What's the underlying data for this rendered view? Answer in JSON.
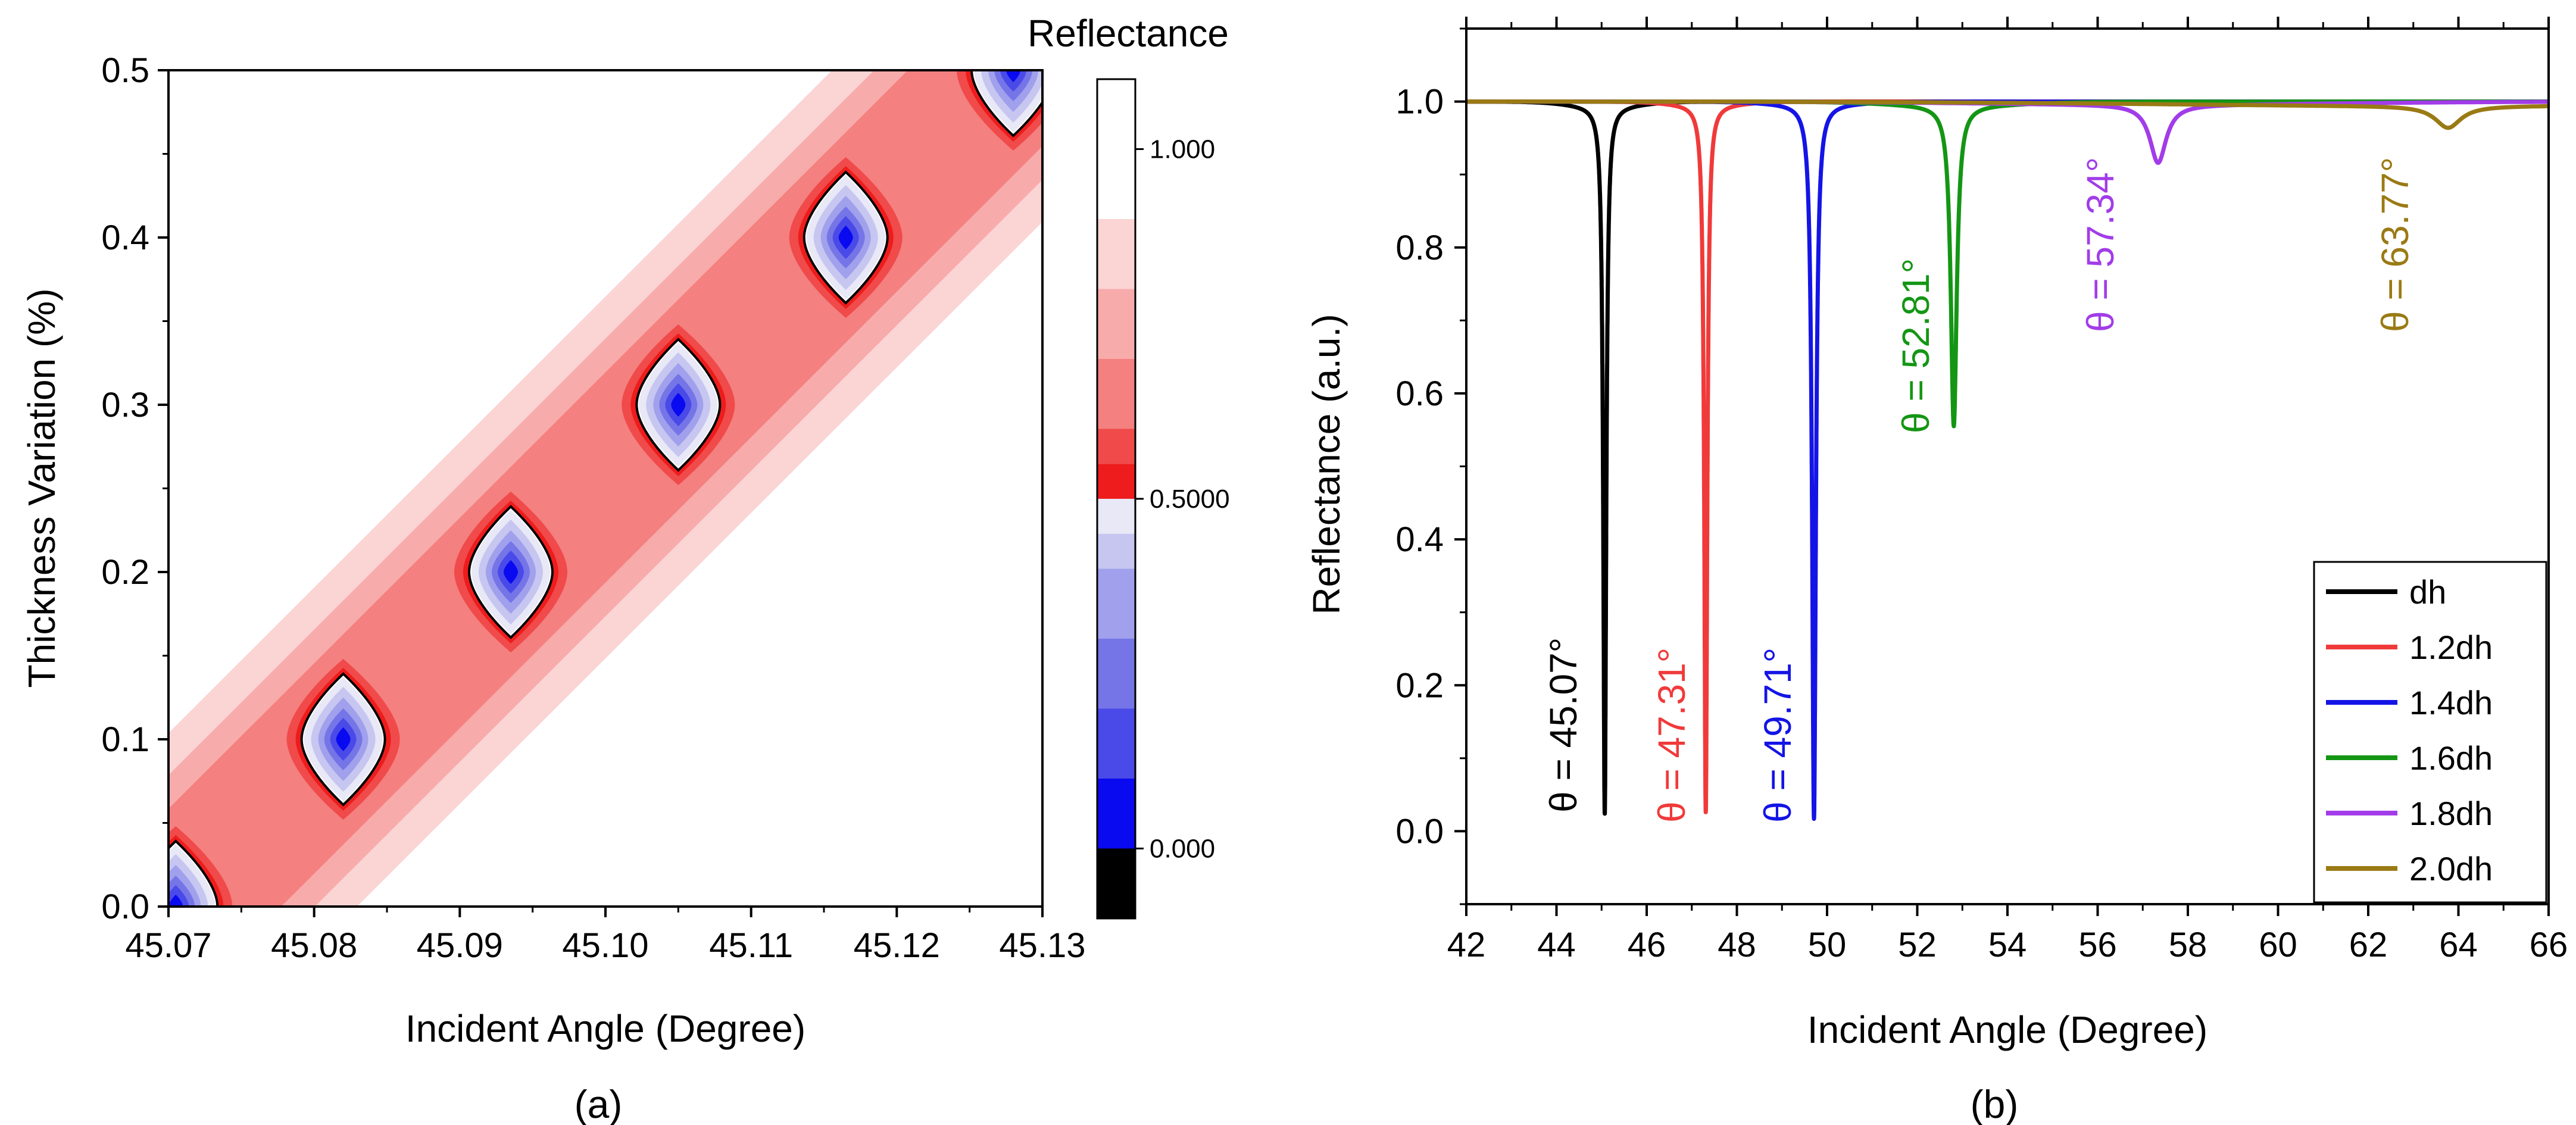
{
  "chart_data": [
    {
      "type": "heatmap",
      "panel_label": "(a)",
      "xlabel": "Incident Angle (Degree)",
      "ylabel": "Thickness Variation (%)",
      "xlim": [
        45.07,
        45.13
      ],
      "ylim": [
        0.0,
        0.5
      ],
      "xticks": [
        45.07,
        45.08,
        45.09,
        45.1,
        45.11,
        45.12,
        45.13
      ],
      "xtick_labels": [
        "45.07",
        "45.08",
        "45.09",
        "45.10",
        "45.11",
        "45.12",
        "45.13"
      ],
      "yticks": [
        0.0,
        0.1,
        0.2,
        0.3,
        0.4,
        0.5
      ],
      "ytick_labels": [
        "0.0",
        "0.1",
        "0.2",
        "0.3",
        "0.4",
        "0.5"
      ],
      "minima": [
        {
          "x": 45.0705,
          "y": 0.0
        },
        {
          "x": 45.082,
          "y": 0.1
        },
        {
          "x": 45.0935,
          "y": 0.2
        },
        {
          "x": 45.105,
          "y": 0.3
        },
        {
          "x": 45.1165,
          "y": 0.4
        },
        {
          "x": 45.128,
          "y": 0.5
        }
      ],
      "colorbar": {
        "title": "Reflectance",
        "range": [
          -0.1,
          1.1
        ],
        "tick_values": [
          1.0,
          0.5,
          0.0
        ],
        "tick_labels": [
          "1.000",
          "0.5000",
          "0.000"
        ],
        "levels": [
          {
            "from": 1.0,
            "to": 1.1,
            "color": "#ffffff"
          },
          {
            "from": 0.9,
            "to": 1.0,
            "color": "#ffffff"
          },
          {
            "from": 0.8,
            "to": 0.9,
            "color": "#fbd4d4"
          },
          {
            "from": 0.7,
            "to": 0.8,
            "color": "#f8abab"
          },
          {
            "from": 0.6,
            "to": 0.7,
            "color": "#f48080"
          },
          {
            "from": 0.55,
            "to": 0.6,
            "color": "#f04a4a"
          },
          {
            "from": 0.5,
            "to": 0.55,
            "color": "#ee1c1c"
          },
          {
            "from": 0.45,
            "to": 0.5,
            "color": "#e8e8f6"
          },
          {
            "from": 0.4,
            "to": 0.45,
            "color": "#c6c6f1"
          },
          {
            "from": 0.3,
            "to": 0.4,
            "color": "#a0a0ec"
          },
          {
            "from": 0.2,
            "to": 0.3,
            "color": "#7575e8"
          },
          {
            "from": 0.1,
            "to": 0.2,
            "color": "#4a4ae8"
          },
          {
            "from": 0.0,
            "to": 0.1,
            "color": "#0a0af0"
          },
          {
            "from": -0.1,
            "to": 0.0,
            "color": "#000000"
          }
        ]
      }
    },
    {
      "type": "line",
      "panel_label": "(b)",
      "xlabel": "Incident Angle (Degree)",
      "ylabel": "Reflectance (a.u.)",
      "xlim": [
        42,
        66
      ],
      "ylim": [
        -0.1,
        1.1
      ],
      "xticks": [
        42,
        44,
        46,
        48,
        50,
        52,
        54,
        56,
        58,
        60,
        62,
        64,
        66
      ],
      "xtick_labels": [
        "42",
        "44",
        "46",
        "48",
        "50",
        "52",
        "54",
        "56",
        "58",
        "60",
        "62",
        "64",
        "66"
      ],
      "yticks": [
        0.0,
        0.2,
        0.4,
        0.6,
        0.8,
        1.0
      ],
      "ytick_labels": [
        "0.0",
        "0.2",
        "0.4",
        "0.6",
        "0.8",
        "1.0"
      ],
      "legend_position": "bottom-right",
      "series": [
        {
          "name": "dh",
          "color": "#000000",
          "dip_angle": 45.07,
          "dip_min": 0.03,
          "dip_width": 0.04,
          "annotation": "θ = 45.07°"
        },
        {
          "name": "1.2dh",
          "color": "#f03a3a",
          "dip_angle": 47.31,
          "dip_min": 0.03,
          "dip_width": 0.04,
          "annotation": "θ = 47.31°"
        },
        {
          "name": "1.4dh",
          "color": "#1414e6",
          "dip_angle": 49.71,
          "dip_min": 0.02,
          "dip_width": 0.05,
          "annotation": "θ = 49.71°"
        },
        {
          "name": "1.6dh",
          "color": "#149614",
          "dip_angle": 52.81,
          "dip_min": 0.56,
          "dip_width": 0.08,
          "annotation": "θ = 52.81°"
        },
        {
          "name": "1.8dh",
          "color": "#a23ce8",
          "dip_angle": 57.34,
          "dip_min": 0.92,
          "dip_width": 0.22,
          "annotation": "θ = 57.34°"
        },
        {
          "name": "2.0dh",
          "color": "#9a7a14",
          "dip_angle": 63.77,
          "dip_min": 0.97,
          "dip_width": 0.35,
          "annotation": "θ = 63.77°"
        }
      ]
    }
  ]
}
